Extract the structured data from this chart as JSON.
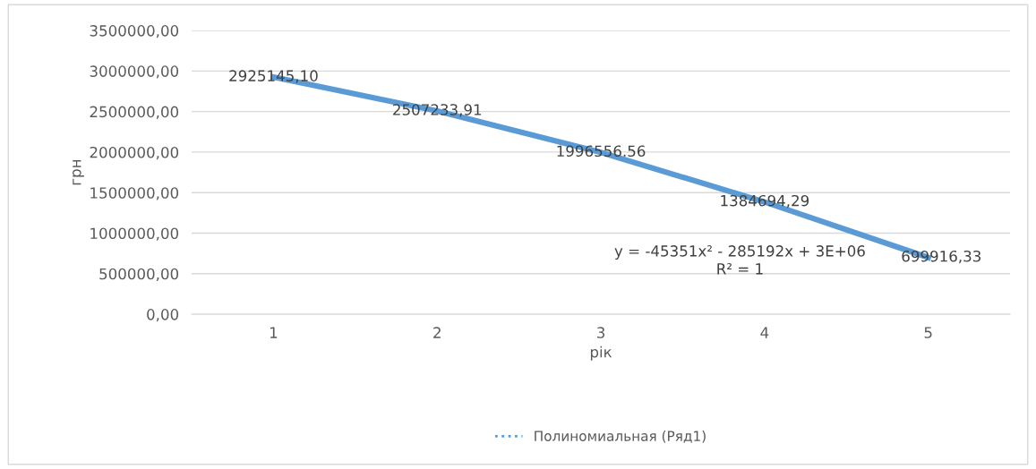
{
  "chart_data": {
    "type": "line",
    "xlabel": "рік",
    "ylabel": "грн",
    "categories": [
      "1",
      "2",
      "3",
      "4",
      "5"
    ],
    "series": [
      {
        "color": "#5b9bd5",
        "values": [
          2925145.1,
          2507233.91,
          1996556.56,
          1384694.29,
          699916.33
        ],
        "value_labels": [
          "2925145,10",
          "2507233,91",
          "1996556.56",
          "1384694,29",
          "699916,33"
        ]
      },
      {
        "name": "Полиномиальная (Ряд1)",
        "color": "#5b9bd5",
        "line_style": "dotted",
        "values": [
          null,
          null,
          null,
          null,
          null
        ]
      }
    ],
    "ylim": [
      0,
      3500000
    ],
    "yticks": [
      {
        "value": 0,
        "label": "0,00"
      },
      {
        "value": 500000,
        "label": "500000,00"
      },
      {
        "value": 1000000,
        "label": "1000000,00"
      },
      {
        "value": 1500000,
        "label": "1500000,00"
      },
      {
        "value": 2000000,
        "label": "2000000,00"
      },
      {
        "value": 2500000,
        "label": "2500000,00"
      },
      {
        "value": 3000000,
        "label": "3000000,00"
      },
      {
        "value": 3500000,
        "label": "3500000,00"
      }
    ],
    "annotations": [
      "y = -45351x² - 285192x + 3E+06\nR² = 1"
    ],
    "grid": "y",
    "legend": "bottom",
    "marker": "none"
  }
}
